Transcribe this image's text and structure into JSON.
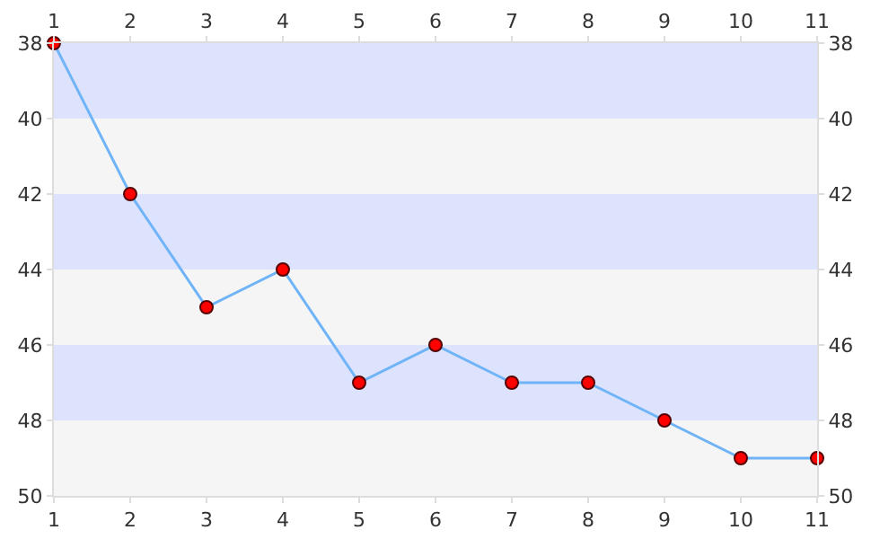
{
  "chart_data": {
    "type": "line",
    "x": [
      1,
      2,
      3,
      4,
      5,
      6,
      7,
      8,
      9,
      10,
      11
    ],
    "series": [
      {
        "color": "#70b4f8",
        "colors": [
          "#ff0000",
          "#ff0000",
          "#ff0000",
          "#ff0000",
          "#ff0000",
          "#ff0000",
          "#ff0000",
          "#ff0000",
          "#ff0000",
          "#ff0000",
          "#ff0000"
        ],
        "values": [
          38,
          42,
          45,
          44,
          47,
          46,
          47,
          47,
          48,
          49,
          49
        ]
      }
    ],
    "xlim": [
      1,
      11
    ],
    "xticks": [
      1,
      2,
      3,
      4,
      5,
      6,
      7,
      8,
      9,
      10,
      11
    ],
    "x2lim": [
      1,
      11
    ],
    "x2ticks": [
      1,
      2,
      3,
      4,
      5,
      6,
      7,
      8,
      9,
      10,
      11
    ],
    "ylim": [
      50,
      38
    ],
    "yticks": [
      38,
      40,
      42,
      44,
      46,
      48,
      50
    ],
    "y2lim": [
      50,
      38
    ],
    "y2ticks": [
      38,
      40,
      42,
      44,
      46,
      48,
      50
    ],
    "bands": [
      {
        "axis": "y",
        "from": 38,
        "to": 40,
        "color": "#dde3fd"
      },
      {
        "axis": "y",
        "from": 40,
        "to": 42,
        "color": "#f5f5f5"
      },
      {
        "axis": "y",
        "from": 42,
        "to": 44,
        "color": "#dde3fd"
      },
      {
        "axis": "y",
        "from": 44,
        "to": 46,
        "color": "#f5f5f5"
      },
      {
        "axis": "y",
        "from": 46,
        "to": 48,
        "color": "#dde3fd"
      },
      {
        "axis": "y",
        "from": 48,
        "to": 50,
        "color": "#f5f5f5"
      }
    ],
    "marker": "circle",
    "line_style": "solid",
    "grid": false
  }
}
